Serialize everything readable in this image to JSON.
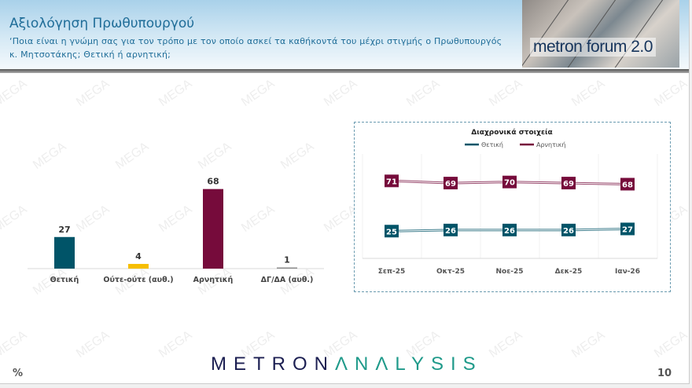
{
  "header": {
    "title": "Αξιολόγηση Πρωθυπουργού",
    "subtitle": "‘Ποια είναι η γνώμη σας για τον τρόπο με τον οποίο ασκεί τα καθήκοντά του μέχρι στιγμής ο Πρωθυπουργός κ. Μητσοτάκης; Θετική ή αρνητική;",
    "logo_text": "metron forum 2.0"
  },
  "watermark": "MEGA",
  "footer": {
    "brand_part1": "METRON",
    "brand_part2": "ΛNΛLYSIS",
    "unit": "%",
    "page_number": "10"
  },
  "chart_data": [
    {
      "type": "bar",
      "categories": [
        "Θετική",
        "Ούτε-ούτε (αυθ.)",
        "Αρνητική",
        "ΔΓ/ΔΑ (αυθ.)"
      ],
      "values": [
        27,
        4,
        68,
        1
      ],
      "colors": [
        "#005468",
        "#f6be00",
        "#760b3b",
        "#8c8c8c"
      ],
      "title": "",
      "xlabel": "",
      "ylabel": "",
      "ylim": [
        0,
        100
      ],
      "grid": false
    },
    {
      "type": "line",
      "title": "Διαχρονικά στοιχεία",
      "categories": [
        "Σεπ-25",
        "Οκτ-25",
        "Νοε-25",
        "Δεκ-25",
        "Ιαν-26"
      ],
      "series": [
        {
          "name": "Θετική",
          "values": [
            25,
            26,
            26,
            26,
            27
          ],
          "color": "#005468"
        },
        {
          "name": "Αρνητική",
          "values": [
            71,
            69,
            70,
            69,
            68
          ],
          "color": "#760b3b"
        }
      ],
      "legend": "top",
      "ylim": [
        0,
        100
      ],
      "grid": true,
      "xlabel": "",
      "ylabel": ""
    }
  ]
}
